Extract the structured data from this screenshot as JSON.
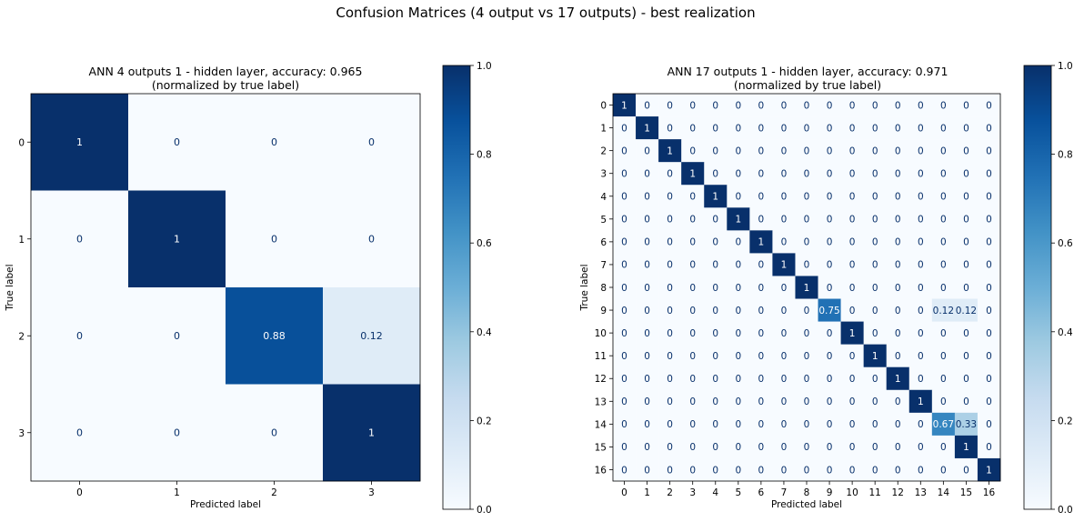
{
  "figure": {
    "suptitle": "Confusion Matrices (4 output vs 17 outputs) - best realization"
  },
  "colormap": {
    "name": "Blues",
    "low": "#f7fbff",
    "high": "#08306b"
  },
  "chart_data": [
    {
      "type": "heatmap",
      "title": "ANN 4 outputs 1 - hidden layer, accuracy: 0.965",
      "subtitle": "(normalized by true label)",
      "xlabel": "Predicted label",
      "ylabel": "True label",
      "labels": [
        "0",
        "1",
        "2",
        "3"
      ],
      "values": [
        [
          1,
          0,
          0,
          0
        ],
        [
          0,
          1,
          0,
          0
        ],
        [
          0,
          0,
          0.88,
          0.12
        ],
        [
          0,
          0,
          0,
          1
        ]
      ],
      "display": [
        [
          "1",
          "0",
          "0",
          "0"
        ],
        [
          "0",
          "1",
          "0",
          "0"
        ],
        [
          "0",
          "0",
          "0.88",
          "0.12"
        ],
        [
          "0",
          "0",
          "0",
          "1"
        ]
      ],
      "colorbar": {
        "range": [
          0,
          1
        ],
        "ticks": [
          "0.0",
          "0.2",
          "0.4",
          "0.6",
          "0.8",
          "1.0"
        ]
      }
    },
    {
      "type": "heatmap",
      "title": "ANN 17 outputs 1 - hidden layer, accuracy: 0.971",
      "subtitle": "(normalized by true label)",
      "xlabel": "Predicted label",
      "ylabel": "True label",
      "labels": [
        "0",
        "1",
        "2",
        "3",
        "4",
        "5",
        "6",
        "7",
        "8",
        "9",
        "10",
        "11",
        "12",
        "13",
        "14",
        "15",
        "16"
      ],
      "values": [
        [
          1,
          0,
          0,
          0,
          0,
          0,
          0,
          0,
          0,
          0,
          0,
          0,
          0,
          0,
          0,
          0,
          0
        ],
        [
          0,
          1,
          0,
          0,
          0,
          0,
          0,
          0,
          0,
          0,
          0,
          0,
          0,
          0,
          0,
          0,
          0
        ],
        [
          0,
          0,
          1,
          0,
          0,
          0,
          0,
          0,
          0,
          0,
          0,
          0,
          0,
          0,
          0,
          0,
          0
        ],
        [
          0,
          0,
          0,
          1,
          0,
          0,
          0,
          0,
          0,
          0,
          0,
          0,
          0,
          0,
          0,
          0,
          0
        ],
        [
          0,
          0,
          0,
          0,
          1,
          0,
          0,
          0,
          0,
          0,
          0,
          0,
          0,
          0,
          0,
          0,
          0
        ],
        [
          0,
          0,
          0,
          0,
          0,
          1,
          0,
          0,
          0,
          0,
          0,
          0,
          0,
          0,
          0,
          0,
          0
        ],
        [
          0,
          0,
          0,
          0,
          0,
          0,
          1,
          0,
          0,
          0,
          0,
          0,
          0,
          0,
          0,
          0,
          0
        ],
        [
          0,
          0,
          0,
          0,
          0,
          0,
          0,
          1,
          0,
          0,
          0,
          0,
          0,
          0,
          0,
          0,
          0
        ],
        [
          0,
          0,
          0,
          0,
          0,
          0,
          0,
          0,
          1,
          0,
          0,
          0,
          0,
          0,
          0,
          0,
          0
        ],
        [
          0,
          0,
          0,
          0,
          0,
          0,
          0,
          0,
          0,
          0.75,
          0,
          0,
          0,
          0,
          0.12,
          0.12,
          0
        ],
        [
          0,
          0,
          0,
          0,
          0,
          0,
          0,
          0,
          0,
          0,
          1,
          0,
          0,
          0,
          0,
          0,
          0
        ],
        [
          0,
          0,
          0,
          0,
          0,
          0,
          0,
          0,
          0,
          0,
          0,
          1,
          0,
          0,
          0,
          0,
          0
        ],
        [
          0,
          0,
          0,
          0,
          0,
          0,
          0,
          0,
          0,
          0,
          0,
          0,
          1,
          0,
          0,
          0,
          0
        ],
        [
          0,
          0,
          0,
          0,
          0,
          0,
          0,
          0,
          0,
          0,
          0,
          0,
          0,
          1,
          0,
          0,
          0
        ],
        [
          0,
          0,
          0,
          0,
          0,
          0,
          0,
          0,
          0,
          0,
          0,
          0,
          0,
          0,
          0.67,
          0.33,
          0
        ],
        [
          0,
          0,
          0,
          0,
          0,
          0,
          0,
          0,
          0,
          0,
          0,
          0,
          0,
          0,
          0,
          1,
          0
        ],
        [
          0,
          0,
          0,
          0,
          0,
          0,
          0,
          0,
          0,
          0,
          0,
          0,
          0,
          0,
          0,
          0,
          1
        ]
      ],
      "colorbar": {
        "range": [
          0,
          1
        ],
        "ticks": [
          "0.0",
          "0.2",
          "0.4",
          "0.6",
          "0.8",
          "1.0"
        ]
      }
    }
  ]
}
